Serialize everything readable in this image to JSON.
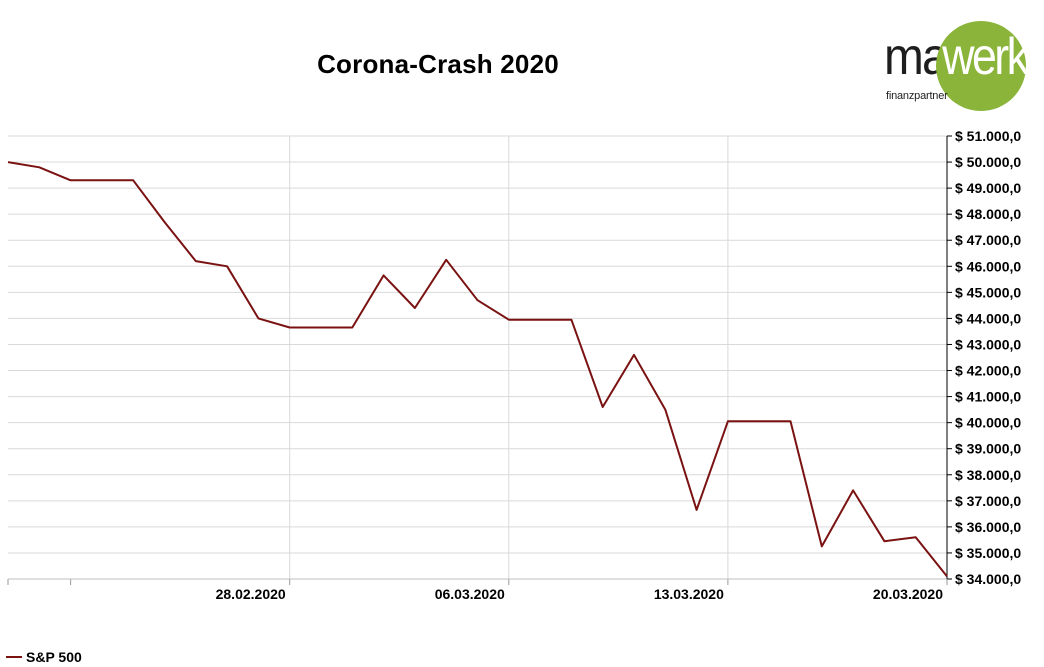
{
  "title": "Corona-Crash 2020",
  "logo": {
    "part1": "mai",
    "part2": "werk",
    "tagline": "finanzpartner",
    "colors": {
      "text": "#1e1e1e",
      "circle": "#8ab43a"
    }
  },
  "chart_data": {
    "type": "line",
    "title": "Corona-Crash 2020",
    "xlabel": "",
    "ylabel": "",
    "ylim": [
      34000,
      51000
    ],
    "y_tick_step": 1000,
    "y_axis_side": "right",
    "y_tick_prefix": "$ ",
    "grid": true,
    "legend_position": "bottom-left",
    "x_tick_labels": [
      {
        "index": 9,
        "label": "28.02.2020"
      },
      {
        "index": 16,
        "label": "06.03.2020"
      },
      {
        "index": 23,
        "label": "13.03.2020"
      },
      {
        "index": 30,
        "label": "20.03.2020"
      }
    ],
    "x_minor_tick_indices": [
      0,
      2,
      9,
      16,
      23,
      30
    ],
    "series": [
      {
        "name": "S&P 500",
        "color": "#7a1212",
        "values": [
          50000,
          49800,
          49300,
          49300,
          49300,
          47700,
          46200,
          46000,
          44000,
          43650,
          43650,
          43650,
          45650,
          44400,
          46250,
          44700,
          43950,
          43950,
          43950,
          40600,
          42600,
          40500,
          36650,
          40050,
          40050,
          40050,
          35250,
          37400,
          35450,
          35600,
          34100
        ]
      }
    ]
  }
}
